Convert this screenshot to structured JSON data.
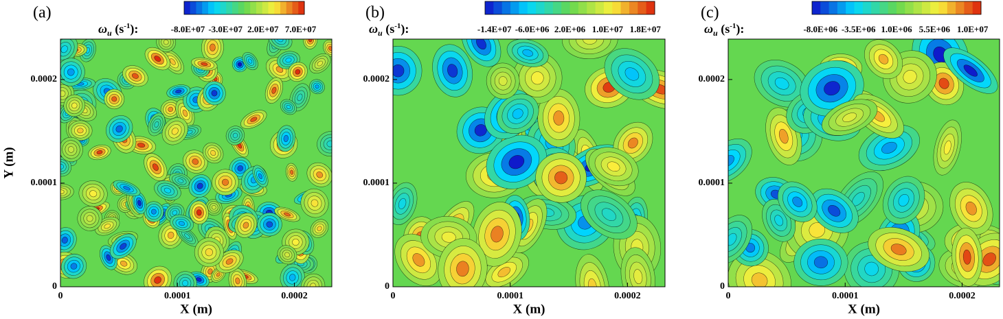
{
  "chart_data": [
    {
      "type": "contour",
      "panel_label": "(a)",
      "colorbar_label": [
        "ω",
        "u",
        " (s",
        "-1",
        "):"
      ],
      "clim": [
        -85000000,
        75000000
      ],
      "cticks": [
        {
          "value": -80000000,
          "label": "-8.0E+07"
        },
        {
          "value": -30000000,
          "label": "-3.0E+07"
        },
        {
          "value": 20000000,
          "label": "2.0E+07"
        },
        {
          "value": 70000000,
          "label": "7.0E+07"
        }
      ],
      "xlabel": "X (m)",
      "ylabel": "Y (m)",
      "xlim": [
        0,
        0.000232
      ],
      "ylim": [
        0,
        0.000239
      ],
      "xticks": [
        0,
        0.0001,
        0.0002
      ],
      "yticks": [
        0,
        0.0001,
        0.0002
      ]
    },
    {
      "type": "contour",
      "panel_label": "(b)",
      "colorbar_label": [
        "ω",
        "u",
        " (s",
        "-1",
        "):"
      ],
      "clim": [
        -16000000,
        20000000
      ],
      "cticks": [
        {
          "value": -14000000,
          "label": "-1.4E+07"
        },
        {
          "value": -6000000,
          "label": "-6.0E+06"
        },
        {
          "value": 2000000,
          "label": "2.0E+06"
        },
        {
          "value": 10000000,
          "label": "1.0E+07"
        },
        {
          "value": 18000000,
          "label": "1.8E+07"
        }
      ],
      "xlabel": "X (m)",
      "xlim": [
        0,
        0.000232
      ],
      "ylim": [
        0,
        0.000239
      ],
      "xticks": [
        0,
        0.0001,
        0.0002
      ],
      "yticks": [
        0,
        0.0001,
        0.0002
      ]
    },
    {
      "type": "contour",
      "panel_label": "(c)",
      "colorbar_label": [
        "ω",
        "u",
        " (s",
        "-1",
        "):"
      ],
      "clim": [
        -9000000,
        11000000
      ],
      "cticks": [
        {
          "value": -8000000,
          "label": "-8.0E+06"
        },
        {
          "value": -3500000,
          "label": "-3.5E+06"
        },
        {
          "value": 1000000,
          "label": "1.0E+06"
        },
        {
          "value": 5500000,
          "label": "5.5E+06"
        },
        {
          "value": 10000000,
          "label": "1.0E+07"
        }
      ],
      "xlabel": "X (m)",
      "xlim": [
        0,
        0.000232
      ],
      "ylim": [
        0,
        0.000239
      ],
      "xticks": [
        0,
        0.0001,
        0.0002
      ],
      "yticks": [
        0,
        0.0001,
        0.0002
      ]
    }
  ]
}
